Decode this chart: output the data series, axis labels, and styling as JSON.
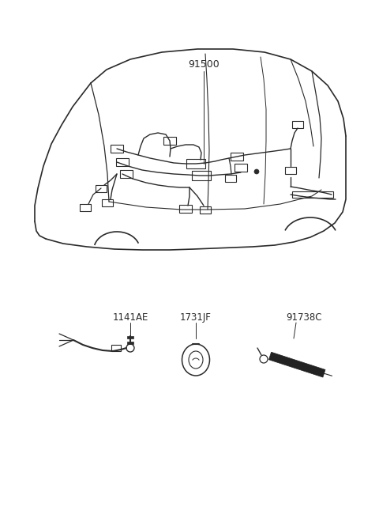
{
  "bg_color": "#ffffff",
  "line_color": "#2a2a2a",
  "figsize": [
    4.8,
    6.55
  ],
  "dpi": 100,
  "label_91500": "91500",
  "label_1141AE": "1141AE",
  "label_1731JF": "1731JF",
  "label_91738C": "91738C"
}
